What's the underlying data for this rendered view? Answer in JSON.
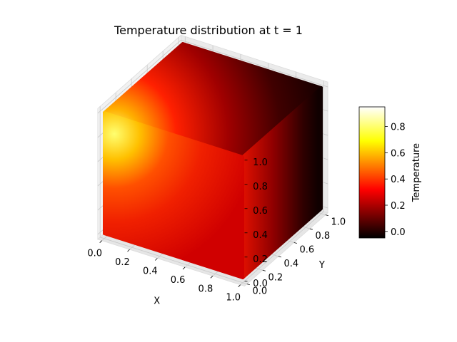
{
  "chart_data": {
    "type": "surface-3d",
    "title": "Temperature distribution at t = 1",
    "xlabel": "X",
    "ylabel": "Y",
    "zlabel": "",
    "xlim": [
      0.0,
      1.0
    ],
    "ylim": [
      0.0,
      1.0
    ],
    "zlim": [
      0.0,
      1.0
    ],
    "x_ticks": [
      "0.0",
      "0.2",
      "0.4",
      "0.6",
      "0.8",
      "1.0"
    ],
    "y_ticks": [
      "0.0",
      "0.2",
      "0.4",
      "0.6",
      "0.8",
      "1.0"
    ],
    "z_ticks": [
      "0.0",
      "0.2",
      "0.4",
      "0.6",
      "0.8",
      "1.0"
    ],
    "colorbar": {
      "label": "Temperature",
      "colormap": "hot",
      "range": [
        -0.05,
        0.95
      ],
      "ticks": [
        "0.0",
        "0.2",
        "0.4",
        "0.6",
        "0.8"
      ],
      "tick_values": [
        0.0,
        0.2,
        0.4,
        0.6,
        0.8
      ]
    },
    "surface": "unit cube faces colored by temperature; hottest at corner (x=0, y=0, z=1)",
    "peak_temperature": 0.95,
    "grid": true
  }
}
